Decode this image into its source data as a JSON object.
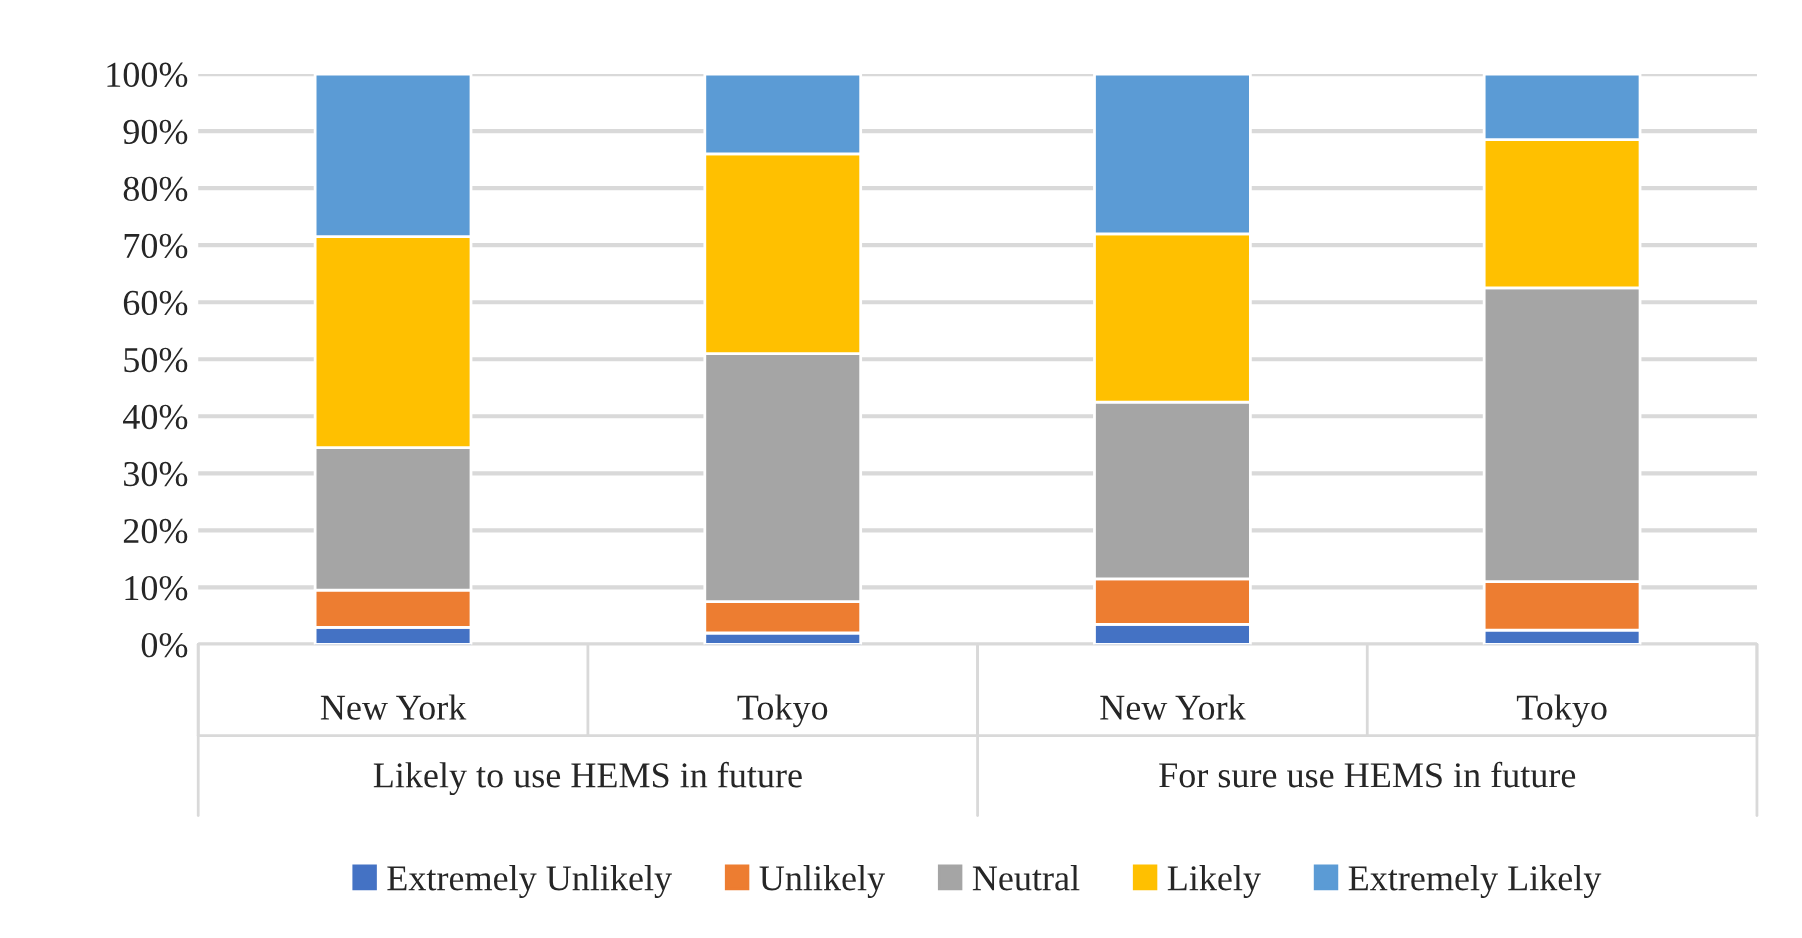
{
  "chart_data": {
    "type": "bar",
    "stacked": true,
    "categories": [
      "New York",
      "Tokyo",
      "New York",
      "Tokyo"
    ],
    "annotations": [
      "Likely to use HEMS in future",
      "For sure use HEMS in future"
    ],
    "series": [
      {
        "name": "Extremely Unlikely",
        "color": "#4472c4",
        "values": [
          3,
          2,
          3.5,
          2.5
        ]
      },
      {
        "name": "Unlikely",
        "color": "#ed7d31",
        "values": [
          6.5,
          5.5,
          8,
          8.5
        ]
      },
      {
        "name": "Neutral",
        "color": "#a5a5a5",
        "values": [
          25,
          43.5,
          31,
          51.5
        ]
      },
      {
        "name": "Likely",
        "color": "#ffc000",
        "values": [
          37,
          35,
          29.5,
          26
        ]
      },
      {
        "name": "Extremely Likely",
        "color": "#5b9bd5",
        "values": [
          28.5,
          14,
          28,
          11.5
        ]
      }
    ],
    "ylim": [
      0,
      100
    ],
    "yticks": [
      {
        "value": 0,
        "label": "0%"
      },
      {
        "value": 10,
        "label": "10%"
      },
      {
        "value": 20,
        "label": "20%"
      },
      {
        "value": 30,
        "label": "30%"
      },
      {
        "value": 40,
        "label": "40%"
      },
      {
        "value": 50,
        "label": "50%"
      },
      {
        "value": 60,
        "label": "60%"
      },
      {
        "value": 70,
        "label": "70%"
      },
      {
        "value": 80,
        "label": "80%"
      },
      {
        "value": 90,
        "label": "90%"
      },
      {
        "value": 100,
        "label": "100%"
      }
    ],
    "grid": "y",
    "legend": "bottom"
  }
}
